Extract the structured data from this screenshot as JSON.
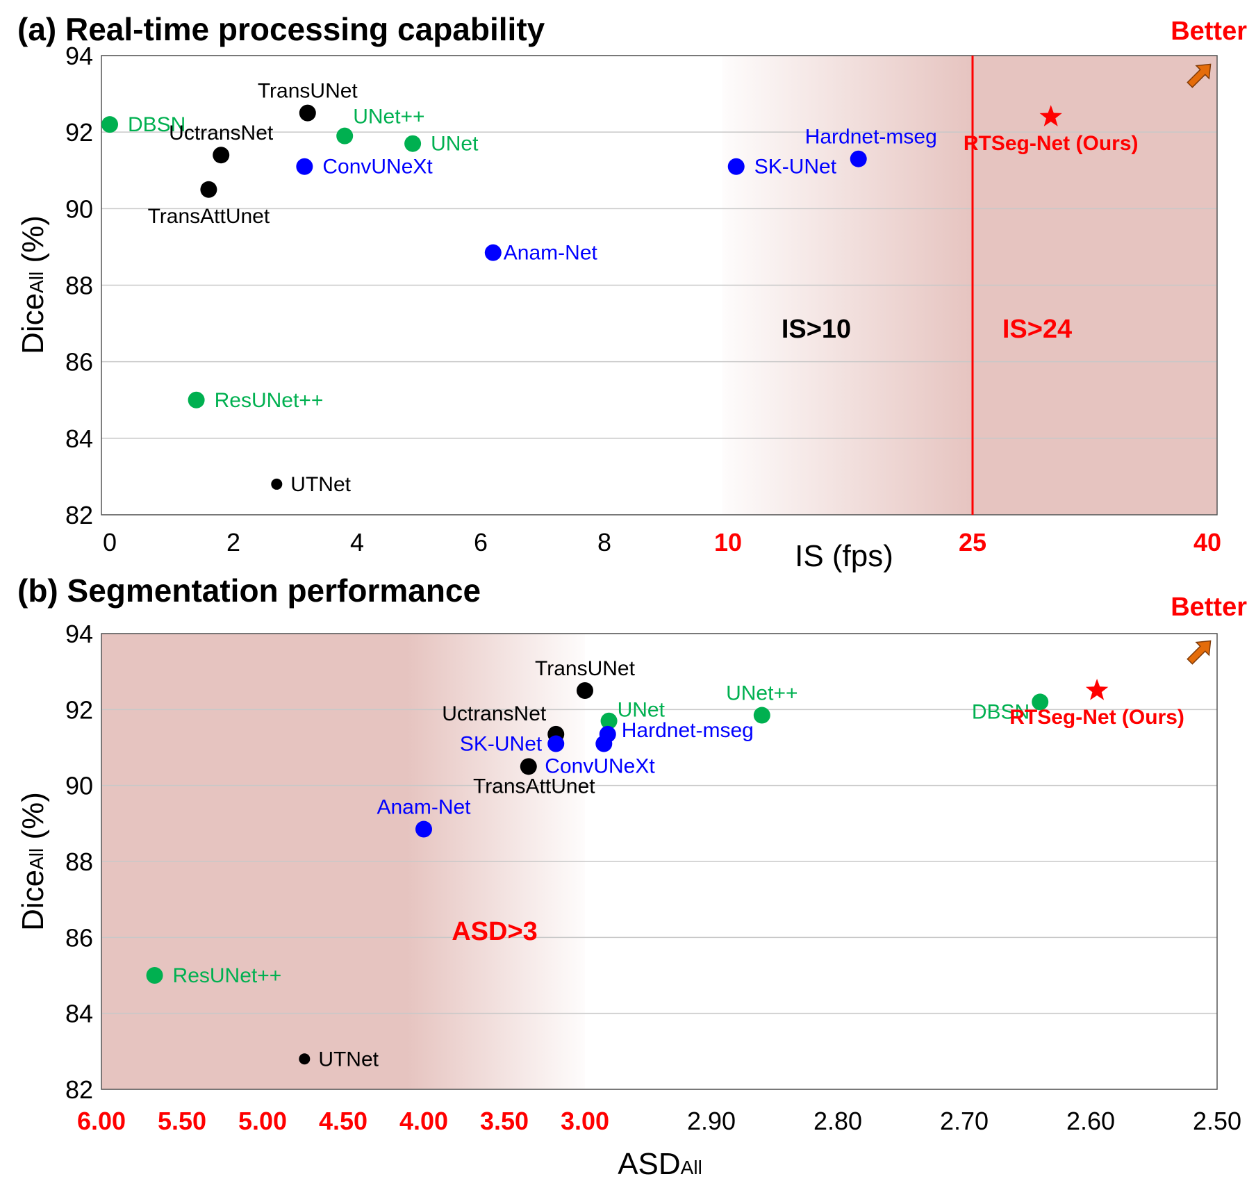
{
  "colors": {
    "black": "#000000",
    "green": "#00b050",
    "blue": "#0000ff",
    "red": "#ff0000",
    "shade": "#e6c4c0",
    "arrow": "#e46c0a",
    "grid": "#c8c8c8"
  },
  "chart_data": [
    {
      "type": "scatter",
      "title": "(a)  Real-time processing capability",
      "xlabel": "IS (fps)",
      "ylabel_main": "Dice",
      "ylabel_sub": "All",
      "ylabel_unit": " (%)",
      "ylim": [
        82,
        94
      ],
      "yticks": [
        "82",
        "84",
        "86",
        "88",
        "90",
        "92",
        "94"
      ],
      "xscale": "piecewise",
      "xticks": [
        {
          "label": "0",
          "value": 0,
          "red": false
        },
        {
          "label": "2",
          "value": 2,
          "red": false
        },
        {
          "label": "4",
          "value": 4,
          "red": false
        },
        {
          "label": "6",
          "value": 6,
          "red": false
        },
        {
          "label": "8",
          "value": 8,
          "red": false
        },
        {
          "label": "10",
          "value": 10,
          "red": true
        },
        {
          "label": "25",
          "value": 25,
          "red": true
        },
        {
          "label": "40",
          "value": 40,
          "red": true
        }
      ],
      "threshold_value": 24,
      "zones": [
        {
          "label": "IS>10",
          "color": "#000000"
        },
        {
          "label": "IS>24",
          "color": "#ff0000"
        }
      ],
      "better_label": "Better",
      "points": [
        {
          "name": "DBSN",
          "x": 0,
          "y": 92.2,
          "group": "green",
          "label_pos": "right"
        },
        {
          "name": "TransUNet",
          "x": 3.2,
          "y": 92.5,
          "group": "black",
          "label_pos": "above"
        },
        {
          "name": "UNet++",
          "x": 3.8,
          "y": 91.9,
          "group": "green",
          "label_pos": "above-right"
        },
        {
          "name": "UNet",
          "x": 4.9,
          "y": 91.7,
          "group": "green",
          "label_pos": "right"
        },
        {
          "name": "UctransNet",
          "x": 1.8,
          "y": 91.4,
          "group": "black",
          "label_pos": "above"
        },
        {
          "name": "ConvUNeXt",
          "x": 3.15,
          "y": 91.1,
          "group": "blue",
          "label_pos": "right"
        },
        {
          "name": "TransAttUnet",
          "x": 1.6,
          "y": 90.5,
          "group": "black",
          "label_pos": "below"
        },
        {
          "name": "Anam-Net",
          "x": 6.2,
          "y": 88.85,
          "group": "blue",
          "label_pos": "right-tight"
        },
        {
          "name": "ResUNet++",
          "x": 1.4,
          "y": 85.0,
          "group": "green",
          "label_pos": "right"
        },
        {
          "name": "UTNet",
          "x": 2.7,
          "y": 82.8,
          "group": "black",
          "label_pos": "right",
          "small": true
        },
        {
          "name": "SK-UNet",
          "x": 10.5,
          "y": 91.1,
          "group": "blue",
          "label_pos": "right"
        },
        {
          "name": "Hardnet-mseg",
          "x": 18.0,
          "y": 91.3,
          "group": "blue",
          "label_pos": "above-left"
        },
        {
          "name": "RTSeg-Net (Ours)",
          "x": 30.0,
          "y": 92.4,
          "group": "red",
          "marker": "star",
          "label_pos": "below"
        }
      ]
    },
    {
      "type": "scatter",
      "title": "(b)  Segmentation performance",
      "xlabel_main": "ASD",
      "xlabel_sub": "All",
      "ylabel_main": "Dice",
      "ylabel_sub": "All",
      "ylabel_unit": " (%)",
      "ylim": [
        82,
        94
      ],
      "yticks": [
        "82",
        "84",
        "86",
        "88",
        "90",
        "92",
        "94"
      ],
      "xscale": "piecewise-reversed",
      "xticks": [
        {
          "label": "6.00",
          "value": 6.0,
          "red": true
        },
        {
          "label": "5.50",
          "value": 5.5,
          "red": true
        },
        {
          "label": "5.00",
          "value": 5.0,
          "red": true
        },
        {
          "label": "4.50",
          "value": 4.5,
          "red": true
        },
        {
          "label": "4.00",
          "value": 4.0,
          "red": true
        },
        {
          "label": "3.50",
          "value": 3.5,
          "red": true
        },
        {
          "label": "3.00",
          "value": 3.0,
          "red": true
        },
        {
          "label": "2.90",
          "value": 2.9,
          "red": false
        },
        {
          "label": "2.80",
          "value": 2.8,
          "red": false
        },
        {
          "label": "2.70",
          "value": 2.7,
          "red": false
        },
        {
          "label": "2.60",
          "value": 2.6,
          "red": false
        },
        {
          "label": "2.50",
          "value": 2.5,
          "red": false
        }
      ],
      "zones": [
        {
          "label": "ASD>3",
          "color": "#ff0000"
        }
      ],
      "better_label": "Better",
      "points": [
        {
          "name": "TransUNet",
          "x": 3.0,
          "y": 92.5,
          "group": "black",
          "label_pos": "above"
        },
        {
          "name": "UNet",
          "x": 2.981,
          "y": 91.7,
          "group": "green",
          "label_pos": "above-right"
        },
        {
          "name": "UctransNet",
          "x": 3.18,
          "y": 91.35,
          "group": "black",
          "label_pos": "above-left"
        },
        {
          "name": "Hardnet-mseg",
          "x": 2.982,
          "y": 91.35,
          "group": "blue",
          "label_pos": "right"
        },
        {
          "name": "SK-UNet",
          "x": 3.18,
          "y": 91.1,
          "group": "blue",
          "label_pos": "left"
        },
        {
          "name": "ConvUNeXt",
          "x": 2.985,
          "y": 91.1,
          "group": "blue",
          "label_pos": "below-right"
        },
        {
          "name": "TransAttUnet",
          "x": 3.35,
          "y": 90.5,
          "group": "black",
          "label_pos": "below"
        },
        {
          "name": "UNet++",
          "x": 2.86,
          "y": 91.85,
          "group": "green",
          "label_pos": "above"
        },
        {
          "name": "DBSN",
          "x": 2.64,
          "y": 92.2,
          "group": "green",
          "label_pos": "left-below"
        },
        {
          "name": "Anam-Net",
          "x": 4.0,
          "y": 88.85,
          "group": "blue",
          "label_pos": "above"
        },
        {
          "name": "ResUNet++",
          "x": 5.67,
          "y": 85.0,
          "group": "green",
          "label_pos": "right"
        },
        {
          "name": "UTNet",
          "x": 4.74,
          "y": 82.8,
          "group": "black",
          "label_pos": "right",
          "small": true
        },
        {
          "name": "RTSeg-Net (Ours)",
          "x": 2.595,
          "y": 92.5,
          "group": "red",
          "marker": "star",
          "label_pos": "below"
        }
      ]
    }
  ]
}
